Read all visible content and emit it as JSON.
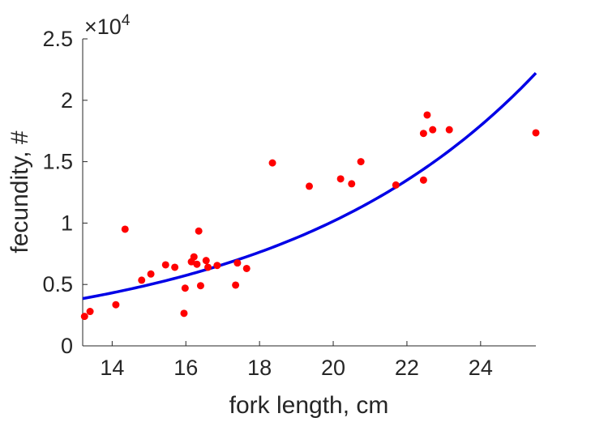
{
  "chart_data": {
    "type": "scatter",
    "title": "",
    "xlabel": "fork length, cm",
    "ylabel": "fecundity, #",
    "xlim": [
      13.2,
      25.5
    ],
    "ylim": [
      0,
      25000
    ],
    "x_ticks": [
      14,
      16,
      18,
      20,
      22,
      24
    ],
    "x_tick_labels": [
      "14",
      "16",
      "18",
      "20",
      "22",
      "24"
    ],
    "y_ticks": [
      0,
      5000,
      10000,
      15000,
      20000,
      25000
    ],
    "y_tick_labels": [
      "0",
      "0.5",
      "1",
      "1.5",
      "2",
      "2.5"
    ],
    "y_exponent_base": "×10",
    "y_exponent_power": "4",
    "grid": false,
    "series": [
      {
        "type": "scatter",
        "color": "#ff0000",
        "points": [
          [
            13.25,
            2400
          ],
          [
            13.4,
            2800
          ],
          [
            14.1,
            3350
          ],
          [
            14.35,
            9500
          ],
          [
            14.8,
            5350
          ],
          [
            15.05,
            5850
          ],
          [
            15.45,
            6600
          ],
          [
            15.7,
            6400
          ],
          [
            15.95,
            2650
          ],
          [
            15.98,
            4700
          ],
          [
            16.15,
            6850
          ],
          [
            16.22,
            7250
          ],
          [
            16.3,
            6650
          ],
          [
            16.35,
            9350
          ],
          [
            16.4,
            4900
          ],
          [
            16.55,
            6950
          ],
          [
            16.6,
            6400
          ],
          [
            16.85,
            6550
          ],
          [
            17.35,
            4950
          ],
          [
            17.4,
            6750
          ],
          [
            17.65,
            6300
          ],
          [
            18.35,
            14900
          ],
          [
            19.35,
            13000
          ],
          [
            20.2,
            13600
          ],
          [
            20.5,
            13200
          ],
          [
            20.75,
            15000
          ],
          [
            21.7,
            13100
          ],
          [
            22.45,
            13500
          ],
          [
            22.45,
            17300
          ],
          [
            22.55,
            18800
          ],
          [
            22.7,
            17600
          ],
          [
            23.15,
            17600
          ],
          [
            25.5,
            17350
          ]
        ]
      },
      {
        "type": "line",
        "color": "#0000e6",
        "fit": {
          "kind": "exponential",
          "a": 3850,
          "b": 0.1425,
          "x0": 13.2
        },
        "x_range": [
          13.2,
          25.5
        ]
      }
    ]
  }
}
